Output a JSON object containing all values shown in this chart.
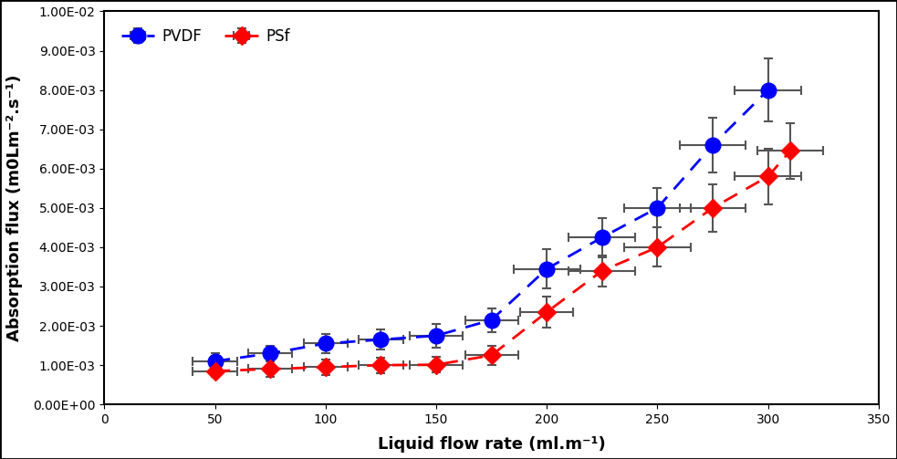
{
  "pvdf_x": [
    50,
    75,
    100,
    125,
    150,
    175,
    200,
    225,
    250,
    275,
    300
  ],
  "pvdf_y": [
    0.0011,
    0.0013,
    0.00155,
    0.00165,
    0.00175,
    0.00215,
    0.00345,
    0.00425,
    0.005,
    0.0066,
    0.008
  ],
  "pvdf_xerr": [
    10,
    10,
    10,
    10,
    12,
    12,
    15,
    15,
    15,
    15,
    15
  ],
  "pvdf_yerr": [
    0.0002,
    0.0002,
    0.00025,
    0.00025,
    0.0003,
    0.0003,
    0.0005,
    0.0005,
    0.0005,
    0.0007,
    0.0008
  ],
  "psf_x": [
    50,
    75,
    100,
    125,
    150,
    175,
    200,
    225,
    250,
    275,
    300,
    310
  ],
  "psf_y": [
    0.00085,
    0.0009,
    0.00095,
    0.001,
    0.00101,
    0.00125,
    0.00235,
    0.0034,
    0.004,
    0.005,
    0.0058,
    0.00645
  ],
  "psf_xerr": [
    10,
    10,
    10,
    10,
    12,
    12,
    12,
    15,
    15,
    15,
    15,
    15
  ],
  "psf_yerr": [
    0.00015,
    0.0002,
    0.0002,
    0.0002,
    0.0002,
    0.00025,
    0.0004,
    0.0004,
    0.0005,
    0.0006,
    0.0007,
    0.0007
  ],
  "pvdf_color": "#0000FF",
  "psf_color": "#FF0000",
  "errorbar_color": "#555555",
  "xlabel": "Liquid flow rate (ml.m⁻¹)",
  "ylabel": "Absorption flux (m0Lm⁻².s⁻¹)",
  "xlim": [
    0,
    350
  ],
  "ylim": [
    0.0,
    0.01
  ],
  "yticks": [
    0.0,
    0.001,
    0.002,
    0.003,
    0.004,
    0.005,
    0.006,
    0.007,
    0.008,
    0.009,
    0.01
  ],
  "ytick_labels": [
    "0.00E+00",
    "1.00E-03",
    "2.00E-03",
    "3.00E-03",
    "4.00E-03",
    "5.00E-03",
    "6.00E-03",
    "7.00E-03",
    "8.00E-03",
    "9.00E-03",
    "1.00E-02"
  ],
  "xticks": [
    0,
    50,
    100,
    150,
    200,
    250,
    300,
    350
  ],
  "legend_pvdf": "PVDF",
  "legend_psf": "PSf",
  "background_color": "#ffffff",
  "outer_border_color": "#000000",
  "tick_fontsize": 10,
  "label_fontsize": 13,
  "legend_fontsize": 12
}
